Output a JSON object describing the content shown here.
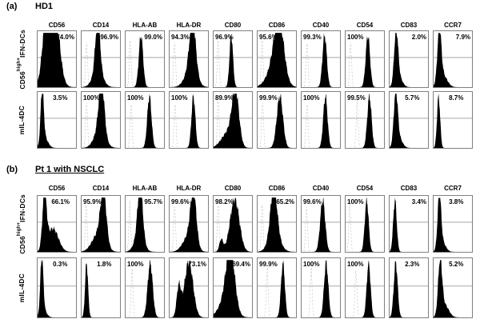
{
  "figure_title": "Flow cytometry surface marker histograms",
  "chart_data": {
    "type": "area",
    "chart_kind": "flow-cytometry-histograms",
    "grid": "off",
    "gate_line_y": 0.47,
    "histogram_color": "#000000",
    "isotype_color": "#b0b0b0",
    "markers": [
      "CD56",
      "CD14",
      "HLA-AB",
      "HLA-DR",
      "CD80",
      "CD86",
      "CD40",
      "CD54",
      "CD83",
      "CCR7"
    ],
    "panels": [
      {
        "letter": "(a)",
        "title": "HD1",
        "underline": false,
        "rows": [
          {
            "label": {
              "pre": "CD56",
              "sup": "high+",
              "post": "IFN-DCs"
            },
            "plots": [
              {
                "marker": "CD56",
                "percent": "74.0%",
                "value": 74.0,
                "side": "right",
                "iso": null,
                "peaks": [
                  [
                    0.2,
                    0.08,
                    0.82
                  ],
                  [
                    0.47,
                    0.11,
                    0.95
                  ],
                  [
                    0.34,
                    0.18,
                    0.45
                  ]
                ]
              },
              {
                "marker": "CD14",
                "percent": "96.9%",
                "value": 96.9,
                "side": "right",
                "iso": 0.13,
                "peaks": [
                  [
                    0.42,
                    0.06,
                    0.93
                  ],
                  [
                    0.42,
                    0.13,
                    0.3
                  ]
                ]
              },
              {
                "marker": "HLA-AB",
                "percent": "99.0%",
                "value": 99.0,
                "side": "right",
                "iso": 0.12,
                "peaks": [
                  [
                    0.4,
                    0.055,
                    0.93
                  ]
                ]
              },
              {
                "marker": "HLA-DR",
                "percent": "94.3%",
                "value": 94.3,
                "side": "left",
                "iso": 0.13,
                "peaks": [
                  [
                    0.6,
                    0.08,
                    0.93
                  ],
                  [
                    0.55,
                    0.15,
                    0.3
                  ]
                ]
              },
              {
                "marker": "CD80",
                "percent": "96.9%",
                "value": 96.9,
                "side": "left",
                "iso": 0.12,
                "peaks": [
                  [
                    0.46,
                    0.045,
                    0.93
                  ]
                ]
              },
              {
                "marker": "CD86",
                "percent": "95.6%",
                "value": 95.6,
                "side": "left",
                "iso": 0.12,
                "peaks": [
                  [
                    0.56,
                    0.12,
                    0.93
                  ],
                  [
                    0.46,
                    0.19,
                    0.4
                  ]
                ]
              },
              {
                "marker": "CD40",
                "percent": "99.3%",
                "value": 99.3,
                "side": "left",
                "iso": 0.14,
                "peaks": [
                  [
                    0.6,
                    0.055,
                    0.93
                  ]
                ]
              },
              {
                "marker": "CD54",
                "percent": "100%",
                "value": 100,
                "side": "left",
                "iso": 0.13,
                "peaks": [
                  [
                    0.58,
                    0.055,
                    0.93
                  ]
                ]
              },
              {
                "marker": "CD83",
                "percent": "2.0%",
                "value": 2.0,
                "side": "right",
                "iso": null,
                "peaks": [
                  [
                    0.17,
                    0.05,
                    0.93
                  ],
                  [
                    0.24,
                    0.09,
                    0.18
                  ]
                ]
              },
              {
                "marker": "CCR7",
                "percent": "7.9%",
                "value": 7.9,
                "side": "right",
                "iso": null,
                "peaks": [
                  [
                    0.15,
                    0.05,
                    0.93
                  ],
                  [
                    0.24,
                    0.11,
                    0.22
                  ]
                ]
              }
            ]
          },
          {
            "label": {
              "pre": "mIL-4DC",
              "sup": "",
              "post": ""
            },
            "plots": [
              {
                "marker": "CD56",
                "percent": "3.5%",
                "value": 3.5,
                "side": "center",
                "iso": null,
                "peaks": [
                  [
                    0.12,
                    0.04,
                    0.93
                  ],
                  [
                    0.18,
                    0.09,
                    0.18
                  ]
                ]
              },
              {
                "marker": "CD14",
                "percent": "100%",
                "value": 100,
                "side": "left",
                "iso": 0.13,
                "peaks": [
                  [
                    0.52,
                    0.07,
                    0.93
                  ],
                  [
                    0.47,
                    0.14,
                    0.32
                  ]
                ]
              },
              {
                "marker": "HLA-AB",
                "percent": "100%",
                "value": 100,
                "side": "left",
                "iso": 0.14,
                "peaks": [
                  [
                    0.62,
                    0.055,
                    0.93
                  ]
                ]
              },
              {
                "marker": "HLA-DR",
                "percent": "100%",
                "value": 100,
                "side": "left",
                "iso": 0.14,
                "peaks": [
                  [
                    0.62,
                    0.05,
                    0.93
                  ]
                ]
              },
              {
                "marker": "CD80",
                "percent": "89.9%",
                "value": 89.9,
                "side": "left",
                "iso": 0.12,
                "peaks": [
                  [
                    0.57,
                    0.09,
                    0.93
                  ],
                  [
                    0.38,
                    0.17,
                    0.28
                  ]
                ]
              },
              {
                "marker": "CD86",
                "percent": "99.9%",
                "value": 99.9,
                "side": "left",
                "iso": 0.13,
                "peaks": [
                  [
                    0.58,
                    0.08,
                    0.93
                  ]
                ]
              },
              {
                "marker": "CD40",
                "percent": "100%",
                "value": 100,
                "side": "left",
                "iso": 0.14,
                "peaks": [
                  [
                    0.62,
                    0.055,
                    0.93
                  ]
                ]
              },
              {
                "marker": "CD54",
                "percent": "99.5%",
                "value": 99.5,
                "side": "left",
                "iso": 0.3,
                "peaks": [
                  [
                    0.62,
                    0.055,
                    0.93
                  ]
                ]
              },
              {
                "marker": "CD83",
                "percent": "5.7%",
                "value": 5.7,
                "side": "center",
                "iso": null,
                "peaks": [
                  [
                    0.16,
                    0.05,
                    0.93
                  ],
                  [
                    0.24,
                    0.09,
                    0.18
                  ]
                ]
              },
              {
                "marker": "CCR7",
                "percent": "8.7%",
                "value": 8.7,
                "side": "center",
                "iso": null,
                "peaks": [
                  [
                    0.13,
                    0.04,
                    0.93
                  ]
                ]
              }
            ]
          }
        ]
      },
      {
        "letter": "(b)",
        "title": "Pt 1 with NSCLC",
        "underline": true,
        "rows": [
          {
            "label": {
              "pre": "CD56",
              "sup": "high+",
              "post": "IFN-DCs"
            },
            "plots": [
              {
                "marker": "CD56",
                "percent": "66.1%",
                "value": 66.1,
                "side": "center",
                "iso": null,
                "peaks": [
                  [
                    0.18,
                    0.055,
                    0.95
                  ],
                  [
                    0.4,
                    0.14,
                    0.42
                  ]
                ]
              },
              {
                "marker": "CD14",
                "percent": "95.9%",
                "value": 95.9,
                "side": "left",
                "iso": 0.12,
                "peaks": [
                  [
                    0.57,
                    0.075,
                    0.9
                  ],
                  [
                    0.44,
                    0.16,
                    0.33
                  ]
                ]
              },
              {
                "marker": "HLA-AB",
                "percent": "95.7%",
                "value": 95.7,
                "side": "right",
                "iso": 0.11,
                "peaks": [
                  [
                    0.38,
                    0.065,
                    0.93
                  ],
                  [
                    0.35,
                    0.12,
                    0.28
                  ]
                ]
              },
              {
                "marker": "HLA-DR",
                "percent": "99.6%",
                "value": 99.6,
                "side": "left",
                "iso": 0.13,
                "peaks": [
                  [
                    0.62,
                    0.075,
                    0.93
                  ],
                  [
                    0.5,
                    0.15,
                    0.28
                  ]
                ]
              },
              {
                "marker": "CD80",
                "percent": "98.2%",
                "value": 98.2,
                "side": "left",
                "iso": 0.12,
                "peaks": [
                  [
                    0.55,
                    0.12,
                    0.95
                  ],
                  [
                    0.2,
                    0.05,
                    0.22
                  ]
                ]
              },
              {
                "marker": "CD86",
                "percent": "65.2%",
                "value": 65.2,
                "side": "right",
                "iso": 0.12,
                "peaks": [
                  [
                    0.42,
                    0.085,
                    0.9
                  ],
                  [
                    0.44,
                    0.15,
                    0.28
                  ]
                ]
              },
              {
                "marker": "CD40",
                "percent": "99.6%",
                "value": 99.6,
                "side": "left",
                "iso": 0.13,
                "peaks": [
                  [
                    0.55,
                    0.065,
                    0.93
                  ]
                ]
              },
              {
                "marker": "CD54",
                "percent": "100%",
                "value": 100,
                "side": "left",
                "iso": 0.11,
                "peaks": [
                  [
                    0.55,
                    0.05,
                    0.93
                  ]
                ]
              },
              {
                "marker": "CD83",
                "percent": "3.4%",
                "value": 3.4,
                "side": "right",
                "iso": null,
                "peaks": [
                  [
                    0.14,
                    0.045,
                    0.93
                  ]
                ]
              },
              {
                "marker": "CCR7",
                "percent": "3.8%",
                "value": 3.8,
                "side": "center",
                "iso": null,
                "peaks": [
                  [
                    0.15,
                    0.045,
                    0.93
                  ],
                  [
                    0.22,
                    0.09,
                    0.18
                  ]
                ]
              }
            ]
          },
          {
            "label": {
              "pre": "mIL-4DC",
              "sup": "",
              "post": ""
            },
            "plots": [
              {
                "marker": "CD56",
                "percent": "0.3%",
                "value": 0.3,
                "side": "center",
                "iso": null,
                "peaks": [
                  [
                    0.11,
                    0.038,
                    0.93
                  ],
                  [
                    0.15,
                    0.08,
                    0.13
                  ]
                ]
              },
              {
                "marker": "CD14",
                "percent": "1.8%",
                "value": 1.8,
                "side": "center",
                "iso": null,
                "peaks": [
                  [
                    0.13,
                    0.038,
                    0.93
                  ]
                ]
              },
              {
                "marker": "HLA-AB",
                "percent": "100%",
                "value": 100,
                "side": "left",
                "iso": 0.17,
                "peaks": [
                  [
                    0.64,
                    0.065,
                    0.93
                  ]
                ]
              },
              {
                "marker": "HLA-DR",
                "percent": "73.1%",
                "value": 73.1,
                "side": "right",
                "iso": null,
                "peaks": [
                  [
                    0.24,
                    0.055,
                    0.52
                  ],
                  [
                    0.5,
                    0.11,
                    0.95
                  ]
                ]
              },
              {
                "marker": "CD80",
                "percent": "69.4%",
                "value": 69.4,
                "side": "right",
                "iso": null,
                "peaks": [
                  [
                    0.44,
                    0.11,
                    0.95
                  ],
                  [
                    0.33,
                    0.18,
                    0.3
                  ]
                ]
              },
              {
                "marker": "CD86",
                "percent": "99.9%",
                "value": 99.9,
                "side": "left",
                "iso": 0.25,
                "peaks": [
                  [
                    0.66,
                    0.05,
                    0.93
                  ]
                ]
              },
              {
                "marker": "CD40",
                "percent": "100%",
                "value": 100,
                "side": "left",
                "iso": 0.25,
                "peaks": [
                  [
                    0.64,
                    0.055,
                    0.93
                  ]
                ]
              },
              {
                "marker": "CD54",
                "percent": "100%",
                "value": 100,
                "side": "left",
                "iso": 0.27,
                "peaks": [
                  [
                    0.6,
                    0.05,
                    0.93
                  ]
                ]
              },
              {
                "marker": "CD83",
                "percent": "2.3%",
                "value": 2.3,
                "side": "center",
                "iso": null,
                "peaks": [
                  [
                    0.16,
                    0.05,
                    0.93
                  ]
                ]
              },
              {
                "marker": "CCR7",
                "percent": "5.2%",
                "value": 5.2,
                "side": "center",
                "iso": null,
                "peaks": [
                  [
                    0.17,
                    0.05,
                    0.9
                  ],
                  [
                    0.28,
                    0.11,
                    0.22
                  ]
                ]
              }
            ]
          }
        ]
      }
    ]
  }
}
